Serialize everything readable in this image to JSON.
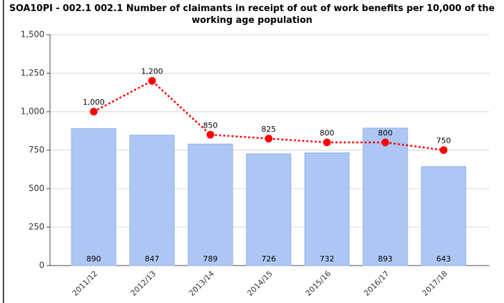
{
  "chart_data": {
    "type": "combo",
    "title": "SOA10PI - 002.1 002.1 Number of claimants in receipt of out of work benefits per 10,000 of the working age population",
    "categories": [
      "2011/12",
      "2012/13",
      "2013/14",
      "2014/15",
      "2015/16",
      "2016/17",
      "2017/18"
    ],
    "series": [
      {
        "type": "bar",
        "color": "#adc6f4",
        "values": [
          890,
          847,
          789,
          726,
          732,
          893,
          643
        ]
      },
      {
        "type": "line",
        "color": "#ff0000",
        "values": [
          1000,
          1200,
          850,
          825,
          800,
          800,
          750
        ],
        "value_labels": [
          "1,000",
          "1,200",
          "850",
          "825",
          "800",
          "800",
          "750"
        ]
      }
    ],
    "ylim": [
      0,
      1500
    ],
    "yticks": [
      0,
      250,
      500,
      750,
      {
        "value": 1000,
        "label": "1,000"
      },
      {
        "value": 1250,
        "label": "1,250"
      },
      {
        "value": 1500,
        "label": "1,500"
      }
    ],
    "grid": true
  }
}
